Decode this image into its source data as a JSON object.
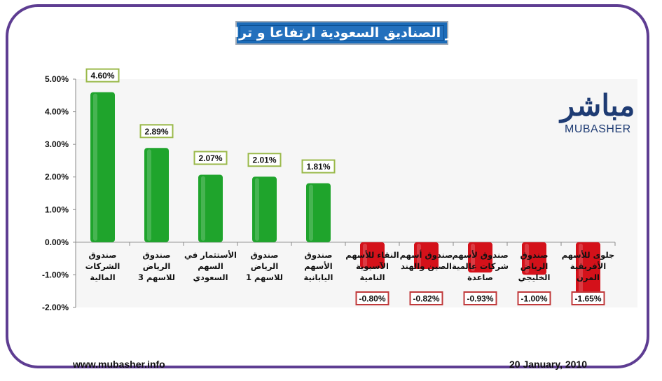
{
  "title": "اكثر الصناديق السعودية ارتفاعا و تراجعا",
  "logo": {
    "arabic": "مباشر",
    "english": "MUBASHER"
  },
  "footer": {
    "website": "www.mubasher.info",
    "date": "20 January, 2010"
  },
  "colors": {
    "positive": "#1fa42c",
    "negative": "#d4111a",
    "positive_label_border": "#9ab94a",
    "negative_label_border": "#c0393b",
    "frame": "#5e3d92",
    "title_bg": "#2370bd"
  },
  "chart_data": {
    "type": "bar",
    "categories": [
      [
        "صندوق",
        "الشركات",
        "المالية"
      ],
      [
        "صندوق",
        "الرياض",
        "للاسهم 3"
      ],
      [
        "الأستثمار في",
        "السهم",
        "السعودي"
      ],
      [
        "صندوق",
        "الرياض",
        "للاسهم 1"
      ],
      [
        "صندوق",
        "الأسهم",
        "اليابانية"
      ],
      [
        "النقاء للأسهم",
        "الآسيوية",
        "النامية"
      ],
      [
        "صندوق أسهم",
        "الصين والهند"
      ],
      [
        "صندوق لأسهم",
        "شركات عالمية",
        "صاعدة"
      ],
      [
        "صندوق",
        "الرياض",
        "الخليجي"
      ],
      [
        "جلوى للأسهم",
        "الأفريقية",
        "المرن"
      ]
    ],
    "values": [
      4.6,
      2.89,
      2.07,
      2.01,
      1.81,
      -0.8,
      -0.82,
      -0.93,
      -1.0,
      -1.65
    ],
    "data_labels": [
      "4.60%",
      "2.89%",
      "2.07%",
      "2.01%",
      "1.81%",
      "-0.80%",
      "-0.82%",
      "-0.93%",
      "-1.00%",
      "-1.65%"
    ],
    "y_ticks": [
      "5.00%",
      "4.00%",
      "3.00%",
      "2.00%",
      "1.00%",
      "0.00%",
      "-1.00%",
      "-2.00%"
    ],
    "ylim": [
      -2,
      5
    ],
    "grid": false,
    "legend": "none"
  }
}
